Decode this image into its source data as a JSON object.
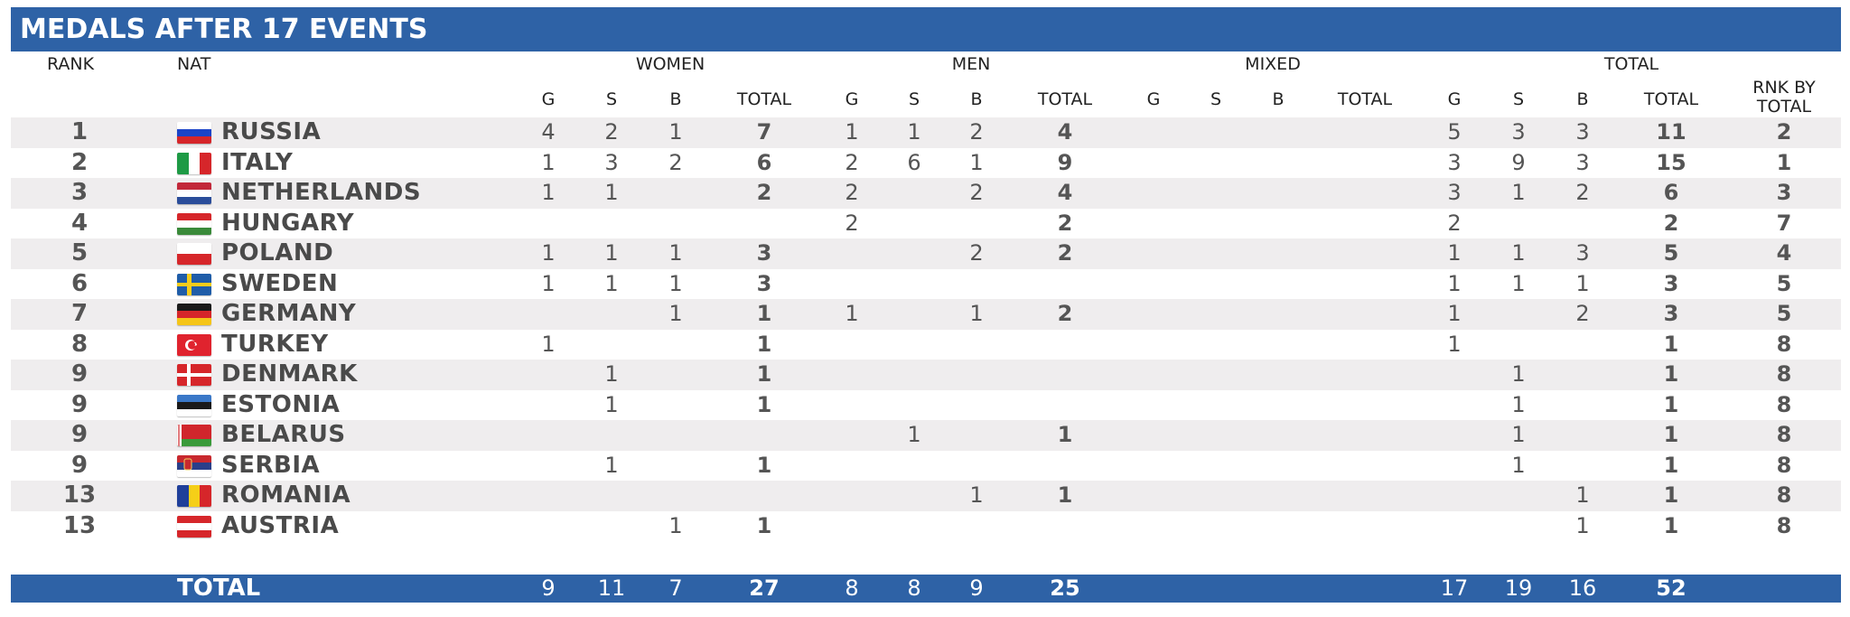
{
  "title": "MEDALS AFTER 17 EVENTS",
  "headers": {
    "rank": "RANK",
    "nat": "NAT",
    "women": "WOMEN",
    "men": "MEN",
    "mixed": "MIXED",
    "total": "TOTAL",
    "g": "G",
    "s": "S",
    "b": "B",
    "sub_total": "TOTAL",
    "rnk_by_total_1": "RNK BY",
    "rnk_by_total_2": "TOTAL"
  },
  "rows": [
    {
      "rank": "1",
      "nat": "RUSSIA",
      "flag": "russia",
      "women": [
        "4",
        "2",
        "1",
        "7"
      ],
      "men": [
        "1",
        "1",
        "2",
        "4"
      ],
      "mixed": [
        "",
        "",
        "",
        ""
      ],
      "total": [
        "5",
        "3",
        "3",
        "11"
      ],
      "rnk_total": "2"
    },
    {
      "rank": "2",
      "nat": "ITALY",
      "flag": "italy",
      "women": [
        "1",
        "3",
        "2",
        "6"
      ],
      "men": [
        "2",
        "6",
        "1",
        "9"
      ],
      "mixed": [
        "",
        "",
        "",
        ""
      ],
      "total": [
        "3",
        "9",
        "3",
        "15"
      ],
      "rnk_total": "1"
    },
    {
      "rank": "3",
      "nat": "NETHERLANDS",
      "flag": "netherlands",
      "women": [
        "1",
        "1",
        "",
        "2"
      ],
      "men": [
        "2",
        "",
        "2",
        "4"
      ],
      "mixed": [
        "",
        "",
        "",
        ""
      ],
      "total": [
        "3",
        "1",
        "2",
        "6"
      ],
      "rnk_total": "3"
    },
    {
      "rank": "4",
      "nat": "HUNGARY",
      "flag": "hungary",
      "women": [
        "",
        "",
        "",
        ""
      ],
      "men": [
        "2",
        "",
        "",
        "2"
      ],
      "mixed": [
        "",
        "",
        "",
        ""
      ],
      "total": [
        "2",
        "",
        "",
        "2"
      ],
      "rnk_total": "7"
    },
    {
      "rank": "5",
      "nat": "POLAND",
      "flag": "poland",
      "women": [
        "1",
        "1",
        "1",
        "3"
      ],
      "men": [
        "",
        "",
        "2",
        "2"
      ],
      "mixed": [
        "",
        "",
        "",
        ""
      ],
      "total": [
        "1",
        "1",
        "3",
        "5"
      ],
      "rnk_total": "4"
    },
    {
      "rank": "6",
      "nat": "SWEDEN",
      "flag": "sweden",
      "women": [
        "1",
        "1",
        "1",
        "3"
      ],
      "men": [
        "",
        "",
        "",
        ""
      ],
      "mixed": [
        "",
        "",
        "",
        ""
      ],
      "total": [
        "1",
        "1",
        "1",
        "3"
      ],
      "rnk_total": "5"
    },
    {
      "rank": "7",
      "nat": "GERMANY",
      "flag": "germany",
      "women": [
        "",
        "",
        "1",
        "1"
      ],
      "men": [
        "1",
        "",
        "1",
        "2"
      ],
      "mixed": [
        "",
        "",
        "",
        ""
      ],
      "total": [
        "1",
        "",
        "2",
        "3"
      ],
      "rnk_total": "5"
    },
    {
      "rank": "8",
      "nat": "TURKEY",
      "flag": "turkey",
      "women": [
        "1",
        "",
        "",
        "1"
      ],
      "men": [
        "",
        "",
        "",
        ""
      ],
      "mixed": [
        "",
        "",
        "",
        ""
      ],
      "total": [
        "1",
        "",
        "",
        "1"
      ],
      "rnk_total": "8"
    },
    {
      "rank": "9",
      "nat": "DENMARK",
      "flag": "denmark",
      "women": [
        "",
        "1",
        "",
        "1"
      ],
      "men": [
        "",
        "",
        "",
        ""
      ],
      "mixed": [
        "",
        "",
        "",
        ""
      ],
      "total": [
        "",
        "1",
        "",
        "1"
      ],
      "rnk_total": "8"
    },
    {
      "rank": "9",
      "nat": "ESTONIA",
      "flag": "estonia",
      "women": [
        "",
        "1",
        "",
        "1"
      ],
      "men": [
        "",
        "",
        "",
        ""
      ],
      "mixed": [
        "",
        "",
        "",
        ""
      ],
      "total": [
        "",
        "1",
        "",
        "1"
      ],
      "rnk_total": "8"
    },
    {
      "rank": "9",
      "nat": "BELARUS",
      "flag": "belarus",
      "women": [
        "",
        "",
        "",
        ""
      ],
      "men": [
        "",
        "1",
        "",
        "1"
      ],
      "mixed": [
        "",
        "",
        "",
        ""
      ],
      "total": [
        "",
        "1",
        "",
        "1"
      ],
      "rnk_total": "8"
    },
    {
      "rank": "9",
      "nat": "SERBIA",
      "flag": "serbia",
      "women": [
        "",
        "1",
        "",
        "1"
      ],
      "men": [
        "",
        "",
        "",
        ""
      ],
      "mixed": [
        "",
        "",
        "",
        ""
      ],
      "total": [
        "",
        "1",
        "",
        "1"
      ],
      "rnk_total": "8"
    },
    {
      "rank": "13",
      "nat": "ROMANIA",
      "flag": "romania",
      "women": [
        "",
        "",
        "",
        ""
      ],
      "men": [
        "",
        "",
        "1",
        "1"
      ],
      "mixed": [
        "",
        "",
        "",
        ""
      ],
      "total": [
        "",
        "",
        "1",
        "1"
      ],
      "rnk_total": "8"
    },
    {
      "rank": "13",
      "nat": "AUSTRIA",
      "flag": "austria",
      "women": [
        "",
        "",
        "1",
        "1"
      ],
      "men": [
        "",
        "",
        "",
        ""
      ],
      "mixed": [
        "",
        "",
        "",
        ""
      ],
      "total": [
        "",
        "",
        "1",
        "1"
      ],
      "rnk_total": "8"
    }
  ],
  "totals": {
    "label": "TOTAL",
    "women": [
      "9",
      "11",
      "7",
      "27"
    ],
    "men": [
      "8",
      "8",
      "9",
      "25"
    ],
    "mixed": [
      "",
      "",
      "",
      ""
    ],
    "total": [
      "17",
      "19",
      "16",
      "52"
    ]
  }
}
